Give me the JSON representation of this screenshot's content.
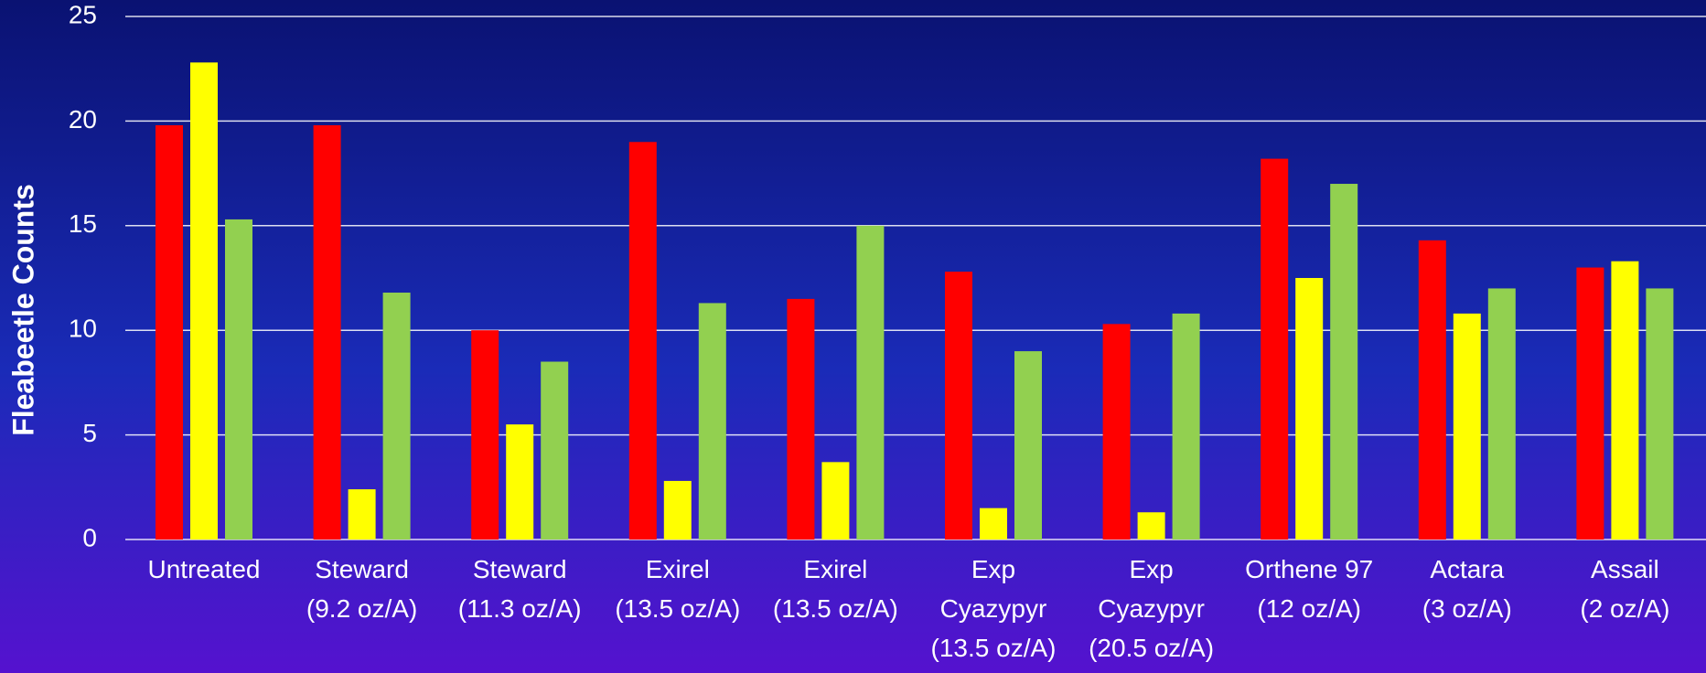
{
  "chart_data": {
    "type": "bar",
    "y_label": "Fleabeetle Counts",
    "categories": [
      [
        "Untreated"
      ],
      [
        "Steward",
        "(9.2 oz/A)"
      ],
      [
        "Steward",
        "(11.3 oz/A)"
      ],
      [
        "Exirel",
        "(13.5 oz/A)"
      ],
      [
        "Exirel",
        "(13.5 oz/A)"
      ],
      [
        "Exp",
        "Cyazypyr",
        "(13.5 oz/A)"
      ],
      [
        "Exp",
        "Cyazypyr",
        "(20.5 oz/A)"
      ],
      [
        "Orthene 97",
        "(12 oz/A)"
      ],
      [
        "Actara",
        "(3 oz/A)"
      ],
      [
        "Assail",
        "(2 oz/A)"
      ]
    ],
    "series": [
      {
        "color": "#ff0000",
        "values": [
          19.8,
          19.8,
          10.0,
          19.0,
          11.5,
          12.8,
          10.3,
          18.2,
          14.3,
          13.0
        ]
      },
      {
        "color": "#ffff00",
        "values": [
          22.8,
          2.4,
          5.5,
          2.8,
          3.7,
          1.5,
          1.3,
          12.5,
          10.8,
          13.3
        ]
      },
      {
        "color": "#92d050",
        "values": [
          15.3,
          11.8,
          8.5,
          11.3,
          15.0,
          9.0,
          10.8,
          17.0,
          12.0,
          12.0
        ]
      }
    ],
    "ylim": [
      0,
      25
    ],
    "yticks": [
      0,
      5,
      10,
      15,
      20,
      25
    ],
    "grid": true
  }
}
